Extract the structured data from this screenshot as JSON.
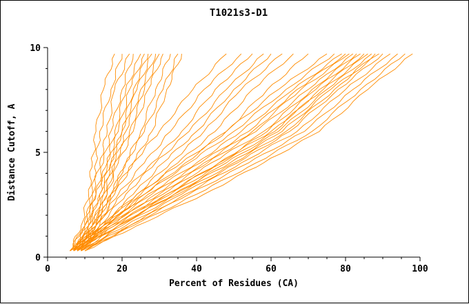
{
  "page": {
    "title": "T1021s3-D1"
  },
  "chart_data": {
    "type": "line",
    "title": "T1021s3-D1",
    "xlabel": "Percent of Residues (CA)",
    "ylabel": "Distance Cutoff, A",
    "xlim": [
      0,
      100
    ],
    "ylim": [
      0,
      10
    ],
    "x_major_ticks": [
      0,
      20,
      40,
      60,
      80,
      100
    ],
    "x_minor_step": 5,
    "y_major_ticks": [
      0,
      5,
      10
    ],
    "y_minor_step": 1,
    "grid": "off",
    "legend": "none",
    "line_color": "#ff8c00",
    "axis_color": "#000000",
    "y_grid": [
      0.3,
      1.5,
      3,
      4.5,
      6,
      8,
      9.7
    ],
    "series": [
      [
        6,
        9,
        11,
        12,
        13,
        15,
        18
      ],
      [
        7,
        10,
        12,
        13,
        14,
        17,
        20
      ],
      [
        6,
        10,
        12,
        14,
        16,
        18,
        22
      ],
      [
        8,
        11,
        13,
        15,
        17,
        20,
        23
      ],
      [
        7,
        11,
        14,
        16,
        18,
        21,
        25
      ],
      [
        6,
        10,
        13,
        16,
        19,
        22,
        26
      ],
      [
        8,
        12,
        15,
        17,
        20,
        23,
        27
      ],
      [
        7,
        11,
        14,
        17,
        20,
        24,
        28
      ],
      [
        9,
        13,
        16,
        18,
        21,
        25,
        29
      ],
      [
        8,
        12,
        15,
        18,
        22,
        26,
        30
      ],
      [
        7,
        12,
        16,
        19,
        23,
        27,
        31
      ],
      [
        9,
        13,
        17,
        21,
        25,
        29,
        33
      ],
      [
        8,
        13,
        17,
        21,
        26,
        31,
        35
      ],
      [
        9,
        14,
        18,
        23,
        28,
        32,
        36
      ],
      [
        7,
        12,
        17,
        23,
        30,
        39,
        48
      ],
      [
        8,
        13,
        19,
        26,
        33,
        42,
        52
      ],
      [
        7,
        13,
        20,
        28,
        36,
        45,
        55
      ],
      [
        8,
        14,
        21,
        29,
        38,
        48,
        58
      ],
      [
        9,
        15,
        23,
        31,
        40,
        50,
        60
      ],
      [
        8,
        15,
        24,
        33,
        42,
        52,
        63
      ],
      [
        9,
        16,
        25,
        35,
        45,
        55,
        66
      ],
      [
        8,
        16,
        26,
        37,
        48,
        59,
        70
      ],
      [
        6,
        14,
        24,
        36,
        48,
        62,
        75
      ],
      [
        7,
        15,
        26,
        38,
        50,
        64,
        77
      ],
      [
        6,
        15,
        27,
        40,
        52,
        66,
        79
      ],
      [
        8,
        16,
        28,
        41,
        54,
        67,
        80
      ],
      [
        7,
        17,
        29,
        42,
        55,
        68,
        81
      ],
      [
        6,
        16,
        30,
        43,
        56,
        70,
        82
      ],
      [
        8,
        18,
        31,
        44,
        58,
        71,
        83
      ],
      [
        7,
        17,
        32,
        46,
        59,
        72,
        84
      ],
      [
        9,
        19,
        33,
        47,
        61,
        73,
        85
      ],
      [
        8,
        18,
        32,
        46,
        60,
        74,
        86
      ],
      [
        7,
        19,
        34,
        48,
        62,
        75,
        87
      ],
      [
        9,
        20,
        35,
        50,
        64,
        77,
        88
      ],
      [
        8,
        19,
        34,
        49,
        63,
        76,
        89
      ],
      [
        9,
        21,
        36,
        51,
        65,
        78,
        90
      ],
      [
        10,
        22,
        37,
        52,
        67,
        80,
        92
      ],
      [
        9,
        22,
        38,
        54,
        69,
        82,
        94
      ],
      [
        10,
        23,
        40,
        56,
        71,
        84,
        96
      ],
      [
        10,
        24,
        42,
        58,
        73,
        86,
        98
      ]
    ]
  }
}
